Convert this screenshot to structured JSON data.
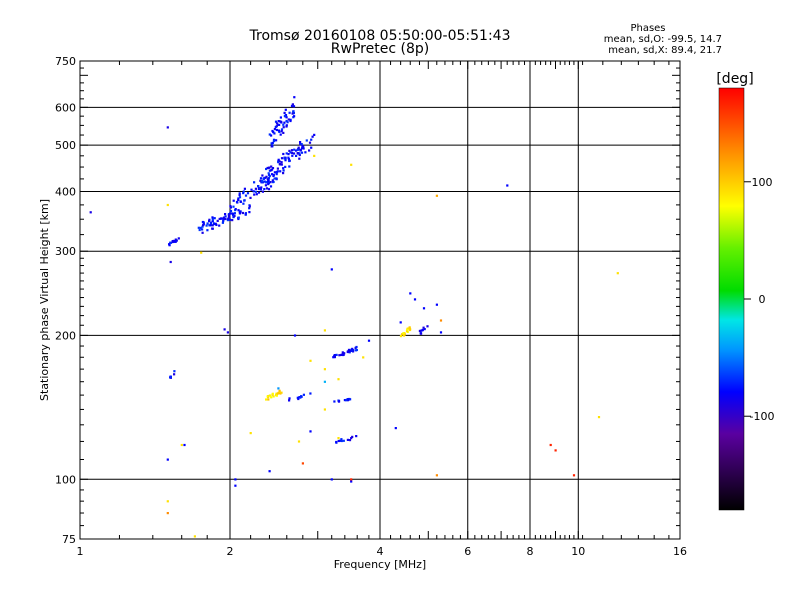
{
  "chart_data": {
    "type": "scatter",
    "title": "Tromsø 20160108 05:50:00-05:51:43",
    "subtitle": "RwPretec (8p)",
    "xlabel": "Frequency [MHz]",
    "ylabel": "Stationary phase Virtual Height [km]",
    "x_scale": "log",
    "y_scale": "log",
    "xlim": [
      1,
      16
    ],
    "ylim": [
      75,
      750
    ],
    "x_ticks": [
      1,
      2,
      4,
      6,
      8,
      10,
      16
    ],
    "x_tick_labels": [
      "1",
      "2",
      "4",
      "6",
      "8",
      "10",
      "16"
    ],
    "y_ticks": [
      75,
      100,
      200,
      300,
      400,
      500,
      600,
      750
    ],
    "y_tick_labels": [
      "75",
      "100",
      "200",
      "300",
      "400",
      "500",
      "600",
      "750"
    ],
    "grid": true,
    "stats_box": {
      "title": "Phases",
      "line1": "mean, sd,O: -99.5, 14.7",
      "line2": "mean, sd,X: 89.4, 21.7"
    },
    "colorbar": {
      "label": "[deg]",
      "ticks": [
        100,
        0,
        -100
      ],
      "tick_labels": [
        "100",
        "0",
        "-100"
      ],
      "range": [
        -180,
        180
      ]
    },
    "series": [
      {
        "clusters": [
          {
            "x": [
              1.5,
              1.58
            ],
            "y": [
              305,
              322
            ],
            "n": 14
          },
          {
            "x": [
              1.72,
              2.2
            ],
            "y": [
              322,
              382
            ],
            "n": 80
          },
          {
            "x": [
              2.0,
              2.5
            ],
            "y": [
              360,
              450
            ],
            "n": 60
          },
          {
            "x": [
              2.3,
              2.8
            ],
            "y": [
              400,
              520
            ],
            "n": 80
          },
          {
            "x": [
              2.4,
              2.7
            ],
            "y": [
              480,
              640
            ],
            "n": 60
          },
          {
            "x": [
              2.5,
              3.0
            ],
            "y": [
              440,
              540
            ],
            "n": 20
          },
          {
            "x": [
              3.2,
              3.6
            ],
            "y": [
              178,
              190
            ],
            "n": 30
          },
          {
            "x": [
              3.2,
              3.5
            ],
            "y": [
              144,
              148
            ],
            "n": 12
          },
          {
            "x": [
              2.6,
              2.9
            ],
            "y": [
              145,
              152
            ],
            "n": 10
          },
          {
            "x": [
              3.2,
              3.6
            ],
            "y": [
              118,
              124
            ],
            "n": 12
          },
          {
            "x": [
              1.5,
              1.55
            ],
            "y": [
              160,
              170
            ],
            "n": 6
          },
          {
            "x": [
              4.8,
              5.0
            ],
            "y": [
              200,
              212
            ],
            "n": 10
          }
        ],
        "points": [
          {
            "x": 1.5,
            "y": 545,
            "phase": -110
          },
          {
            "x": 1.05,
            "y": 362,
            "phase": -110
          },
          {
            "x": 1.52,
            "y": 285,
            "phase": -110
          },
          {
            "x": 1.95,
            "y": 206,
            "phase": -110
          },
          {
            "x": 1.98,
            "y": 203,
            "phase": -110
          },
          {
            "x": 7.2,
            "y": 412,
            "phase": -100
          },
          {
            "x": 3.2,
            "y": 275,
            "phase": -100
          },
          {
            "x": 3.2,
            "y": 100,
            "phase": -100
          },
          {
            "x": 3.5,
            "y": 99,
            "phase": -100
          },
          {
            "x": 2.05,
            "y": 100,
            "phase": -100
          },
          {
            "x": 2.05,
            "y": 97,
            "phase": -100
          },
          {
            "x": 2.4,
            "y": 104,
            "phase": -100
          },
          {
            "x": 1.5,
            "y": 110,
            "phase": -100
          },
          {
            "x": 1.62,
            "y": 118,
            "phase": -100
          },
          {
            "x": 2.9,
            "y": 126,
            "phase": -100
          },
          {
            "x": 3.8,
            "y": 195,
            "phase": -100
          },
          {
            "x": 4.6,
            "y": 245,
            "phase": -100
          },
          {
            "x": 5.2,
            "y": 232,
            "phase": -100
          },
          {
            "x": 4.9,
            "y": 228,
            "phase": -100
          },
          {
            "x": 4.7,
            "y": 238,
            "phase": -100
          },
          {
            "x": 4.4,
            "y": 213,
            "phase": -100
          },
          {
            "x": 5.3,
            "y": 203,
            "phase": -100
          },
          {
            "x": 4.3,
            "y": 128,
            "phase": -100
          },
          {
            "x": 2.7,
            "y": 200,
            "phase": -100
          },
          {
            "x": 2.5,
            "y": 155,
            "phase": -70
          },
          {
            "x": 3.1,
            "y": 160,
            "phase": -60
          }
        ]
      },
      {
        "clusters": [
          {
            "x": [
              2.35,
              2.55
            ],
            "y": [
              145,
              155
            ],
            "n": 20
          },
          {
            "x": [
              4.4,
              4.6
            ],
            "y": [
              197,
              210
            ],
            "n": 16
          }
        ],
        "points": [
          {
            "x": 1.5,
            "y": 375,
            "phase": 110
          },
          {
            "x": 1.75,
            "y": 298,
            "phase": 110
          },
          {
            "x": 2.95,
            "y": 475,
            "phase": 110
          },
          {
            "x": 3.5,
            "y": 455,
            "phase": 110
          },
          {
            "x": 5.2,
            "y": 392,
            "phase": 130
          },
          {
            "x": 12,
            "y": 270,
            "phase": 110
          },
          {
            "x": 11,
            "y": 135,
            "phase": 110
          },
          {
            "x": 2.2,
            "y": 125,
            "phase": 110
          },
          {
            "x": 2.75,
            "y": 120,
            "phase": 110
          },
          {
            "x": 1.6,
            "y": 118,
            "phase": 110
          },
          {
            "x": 1.5,
            "y": 90,
            "phase": 110
          },
          {
            "x": 1.7,
            "y": 76,
            "phase": 110
          },
          {
            "x": 2.9,
            "y": 177,
            "phase": 110
          },
          {
            "x": 3.1,
            "y": 170,
            "phase": 110
          },
          {
            "x": 3.3,
            "y": 162,
            "phase": 110
          },
          {
            "x": 3.1,
            "y": 140,
            "phase": 110
          },
          {
            "x": 3.3,
            "y": 122,
            "phase": 110
          },
          {
            "x": 3.7,
            "y": 180,
            "phase": 110
          },
          {
            "x": 3.1,
            "y": 205,
            "phase": 110
          },
          {
            "x": 5.2,
            "y": 102,
            "phase": 140
          },
          {
            "x": 1.5,
            "y": 85,
            "phase": 140
          },
          {
            "x": 5.3,
            "y": 215,
            "phase": 140
          },
          {
            "x": 2.8,
            "y": 108,
            "phase": 160
          },
          {
            "x": 3.5,
            "y": 100,
            "phase": 170
          },
          {
            "x": 8.8,
            "y": 118,
            "phase": 170
          },
          {
            "x": 9.0,
            "y": 115,
            "phase": 170
          },
          {
            "x": 9.8,
            "y": 102,
            "phase": 170
          }
        ]
      }
    ]
  }
}
